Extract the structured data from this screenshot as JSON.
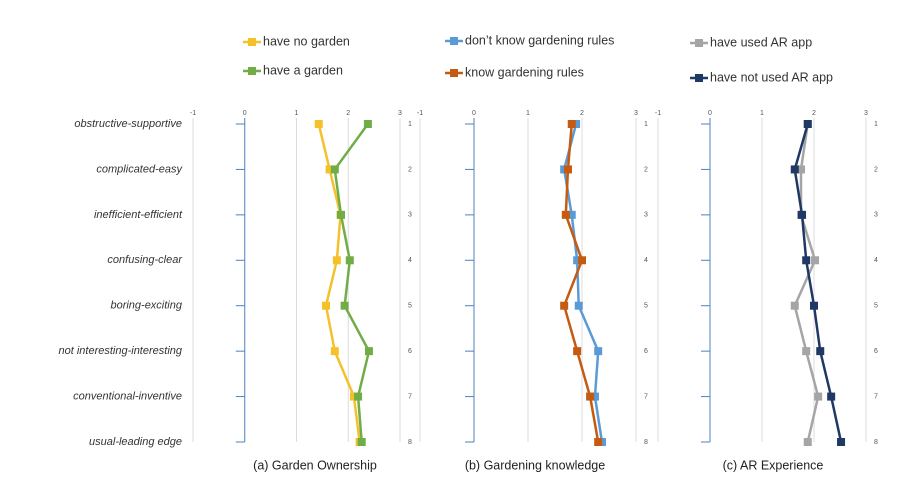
{
  "chart_data": [
    {
      "type": "line",
      "title": "(a) Garden Ownership",
      "categories": [
        "obstructive-supportive",
        "complicated-easy",
        "inefficient-efficient",
        "confusing-clear",
        "boring-exciting",
        "not interesting-interesting",
        "conventional-inventive",
        "usual-leading edge"
      ],
      "xlim": [
        -1,
        3
      ],
      "xticks": [
        -1,
        0,
        1,
        2,
        3
      ],
      "ylim": [
        1,
        8
      ],
      "yticks": [
        1,
        2,
        3,
        4,
        5,
        6,
        7,
        8
      ],
      "grid": true,
      "series": [
        {
          "name": "have no garden",
          "color": "#f5c12a",
          "values": [
            1.43,
            1.64,
            1.85,
            1.78,
            1.57,
            1.74,
            2.11,
            2.22
          ]
        },
        {
          "name": "have a garden",
          "color": "#70ad47",
          "values": [
            2.38,
            1.74,
            1.86,
            2.03,
            1.93,
            2.4,
            2.19,
            2.26
          ]
        }
      ]
    },
    {
      "type": "line",
      "title": "(b) Gardening knowledge",
      "xlim": [
        -1,
        3
      ],
      "xticks": [
        -1,
        0,
        1,
        2,
        3
      ],
      "ylim": [
        1,
        8
      ],
      "yticks": [
        1,
        2,
        3,
        4,
        5,
        6,
        7,
        8
      ],
      "grid": true,
      "series": [
        {
          "name": "don’t know gardening rules",
          "color": "#5b9bd5",
          "values": [
            1.89,
            1.67,
            1.81,
            1.91,
            1.94,
            2.3,
            2.24,
            2.37
          ]
        },
        {
          "name": "know gardening rules",
          "color": "#c55a11",
          "values": [
            1.81,
            1.74,
            1.7,
            2.0,
            1.67,
            1.91,
            2.15,
            2.3
          ]
        }
      ]
    },
    {
      "type": "line",
      "title": "(c) AR Experience",
      "xlim": [
        -1,
        3
      ],
      "xticks": [
        -1,
        0,
        1,
        2,
        3
      ],
      "ylim": [
        1,
        8
      ],
      "yticks": [
        1,
        2,
        3,
        4,
        5,
        6,
        7,
        8
      ],
      "grid": true,
      "series": [
        {
          "name": "have used AR app",
          "color": "#a5a5a5",
          "values": [
            1.88,
            1.75,
            1.75,
            2.02,
            1.63,
            1.85,
            2.08,
            1.88
          ]
        },
        {
          "name": "have not used AR app",
          "color": "#203864",
          "values": [
            1.88,
            1.63,
            1.77,
            1.85,
            2.0,
            2.12,
            2.33,
            2.52
          ]
        }
      ]
    }
  ]
}
